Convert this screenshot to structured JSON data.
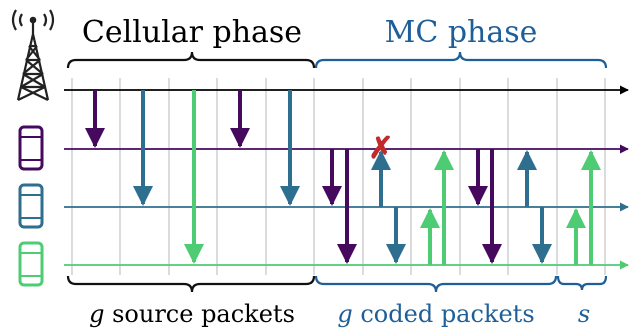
{
  "labels": {
    "cellular_phase": "Cellular phase",
    "mc_phase": "MC phase",
    "source_var": "g",
    "source_text": " source packets",
    "coded_var": "g",
    "coded_text": " coded packets",
    "s_label": "s"
  },
  "devices": [
    {
      "name": "phone-purple",
      "color": "#45095e"
    },
    {
      "name": "phone-blue",
      "color": "#2e6e8e"
    },
    {
      "name": "phone-green",
      "color": "#4dcc74"
    }
  ],
  "colors": {
    "black": "#000000",
    "purple": "#45095e",
    "blue": "#2e6e8e",
    "green": "#4dcc74",
    "grid": "#c8c8c8",
    "brace_black": "#111111",
    "brace_blue": "#1f5f99",
    "lost_marker": "#c22b2b",
    "text_blue": "#1f5f99"
  },
  "icons": {
    "tower": "cell-tower-icon",
    "phone": "smartphone-icon",
    "lost": "packet-lost-x-icon"
  },
  "lost_marker": "✗"
}
